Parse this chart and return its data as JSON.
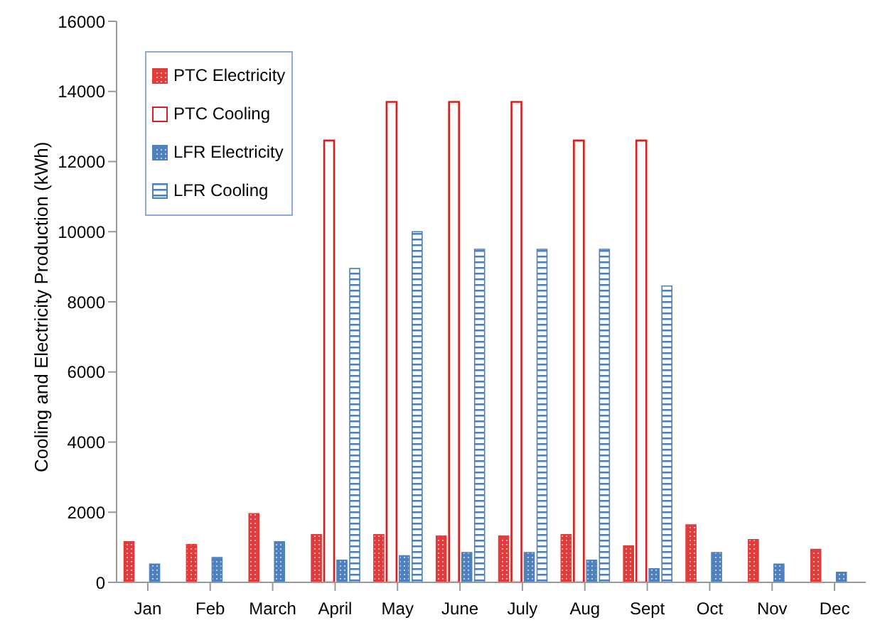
{
  "chart_data": {
    "type": "bar",
    "ylabel": "Cooling and Electricity Production (kWh)",
    "categories": [
      "Jan",
      "Feb",
      "March",
      "April",
      "May",
      "June",
      "July",
      "Aug",
      "Sept",
      "Oct",
      "Nov",
      "Dec"
    ],
    "series": [
      {
        "name": "PTC Electricity",
        "color": "#e03c3c",
        "values": [
          1160,
          1080,
          1960,
          1360,
          1360,
          1320,
          1320,
          1360,
          1040,
          1640,
          1220,
          940
        ]
      },
      {
        "name": "PTC Cooling",
        "color": "#d42020",
        "values": [
          null,
          null,
          null,
          12600,
          13700,
          13700,
          13700,
          12600,
          12600,
          null,
          null,
          null
        ]
      },
      {
        "name": "LFR Electricity",
        "color": "#4f81bd",
        "values": [
          520,
          710,
          1160,
          630,
          760,
          850,
          850,
          630,
          390,
          850,
          520,
          290
        ]
      },
      {
        "name": "LFR Cooling",
        "color": "#4f81bd",
        "values": [
          null,
          null,
          null,
          8950,
          10000,
          9500,
          9500,
          9500,
          8450,
          null,
          null,
          null
        ]
      }
    ],
    "ylim": [
      0,
      16000
    ],
    "yticks": [
      0,
      2000,
      4000,
      6000,
      8000,
      10000,
      12000,
      14000,
      16000
    ],
    "grid": false,
    "legend": "top left"
  }
}
